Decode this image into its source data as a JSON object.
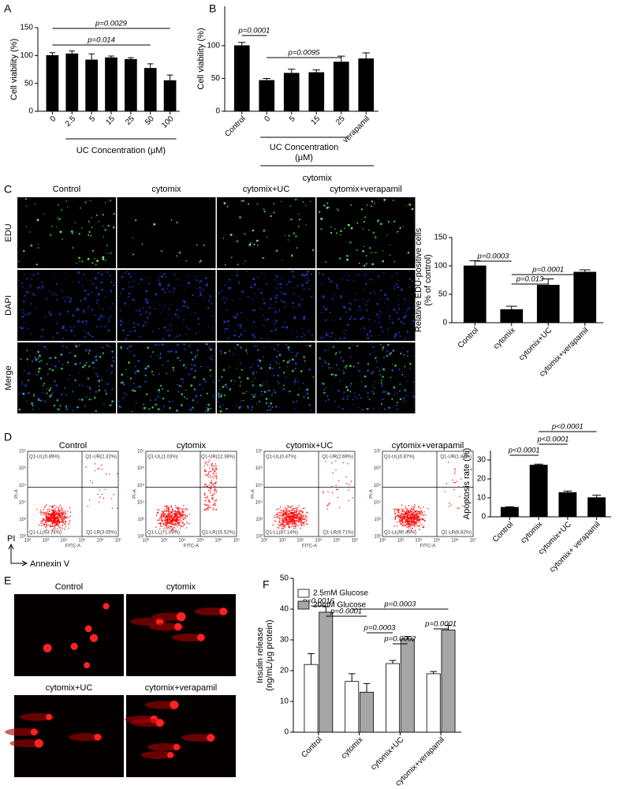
{
  "panel_labels": [
    "A",
    "B",
    "C",
    "D",
    "E",
    "F"
  ],
  "chart_data": [
    {
      "type": "bar",
      "ylabel": [
        "Cell viability (%)"
      ],
      "xlabel": "UC Concentration (μM)",
      "categories": [
        "0",
        "2.5",
        "5",
        "15",
        "25",
        "50",
        "100"
      ],
      "values": [
        100,
        103,
        92,
        96,
        93,
        77,
        55
      ],
      "errors": [
        5,
        5,
        11,
        3,
        3,
        8,
        10
      ],
      "color": "#000000",
      "ylim": [
        0,
        150
      ],
      "yticks": [
        0,
        50,
        100,
        150
      ],
      "annotations": [
        "p=0.0029",
        "p=0.014"
      ]
    },
    {
      "type": "bar",
      "ylabel": [
        "Cell viability (%)"
      ],
      "group_labels": [
        "UC Concentration",
        "(μM)",
        "cytomix"
      ],
      "categories": [
        "Control",
        "0",
        "5",
        "15",
        "25",
        "verapamil"
      ],
      "values": [
        100,
        47,
        58,
        59,
        75,
        80
      ],
      "errors": [
        5,
        3,
        6,
        4,
        9,
        9
      ],
      "color": "#000000",
      "ylim": [
        0,
        160
      ],
      "yticks": [
        0,
        50,
        100
      ],
      "annotations": [
        "p=0.0001",
        "p=0.0095"
      ]
    },
    {
      "type": "bar",
      "ylabel": [
        "Relative EDU-positive cells",
        "(% of control)"
      ],
      "categories": [
        "Control",
        "cytomix",
        "cytomix+UC",
        "cytomix+verapamil"
      ],
      "values": [
        100,
        23,
        66,
        89
      ],
      "errors": [
        9,
        6,
        11,
        4
      ],
      "color": "#000000",
      "ylim": [
        0,
        150
      ],
      "yticks": [
        0,
        50,
        100,
        150
      ],
      "annotations": [
        "p=0.0003",
        "p=0.013",
        "p=0.0001"
      ]
    },
    {
      "type": "bar",
      "ylabel": [
        "Apoptosis rate (%)"
      ],
      "categories": [
        "Control",
        "cytomix",
        "cytomix+UC",
        "cytomix+ verapamil"
      ],
      "values": [
        5,
        27.3,
        12.8,
        10.1
      ],
      "errors": [
        0.3,
        0.5,
        0.8,
        1.3
      ],
      "color": "#000000",
      "ylim": [
        0,
        35
      ],
      "yticks": [
        0,
        10,
        20,
        30
      ],
      "annotations": [
        "p<0.0001",
        "p<0.0001",
        "p<0.0001"
      ]
    },
    {
      "type": "grouped_bar",
      "ylabel": [
        "Insulin release",
        "(ng/mL/μg protein)"
      ],
      "categories": [
        "Control",
        "cytomix",
        "cytomix+UC",
        "cytomix+verapamil"
      ],
      "series": [
        {
          "name": "2.5mM Glucose",
          "color": "#ffffff",
          "values": [
            22,
            16.5,
            22.3,
            19
          ],
          "errors": [
            3.5,
            2.5,
            1,
            0.7
          ]
        },
        {
          "name": "20mM Glucose",
          "color": "#a6a6a6",
          "values": [
            39,
            13,
            30.3,
            33.2
          ],
          "errors": [
            1.8,
            2.8,
            0.8,
            1.5
          ]
        }
      ],
      "ylim": [
        0,
        50
      ],
      "yticks": [
        0,
        10,
        20,
        30,
        40,
        50
      ],
      "annotations": [
        "p=0.0016",
        "p=0.0001",
        "p=0.0003",
        "p=0.0003",
        "p=0.0002",
        "p=0.0001"
      ]
    }
  ],
  "images_c": {
    "columns": [
      "Control",
      "cytomix",
      "cytomix+UC",
      "cytomix+verapamil"
    ],
    "rows": [
      "EDU",
      "DAPI",
      "Merge"
    ]
  },
  "flow": {
    "plots": [
      {
        "title": "Control",
        "quadrants": [
          "Q1-UL(0.89%)",
          "Q1-UR(2.32%)",
          "Q1-LL(93.74%)",
          "Q1-LR(3.05%)"
        ]
      },
      {
        "title": "cytomix",
        "quadrants": [
          "Q1-UL(1.03%)",
          "Q1-UR(12.38%)",
          "Q1-LL(71.09%)",
          "Q1-LR(15.52%)"
        ]
      },
      {
        "title": "cytomix+UC",
        "quadrants": [
          "Q1-UL(0.47%)",
          "Q1-UR(2.69%)",
          "Q1-LL(87.14%)",
          "Q1-LR(9.71%)"
        ]
      },
      {
        "title": "cytomix+verapamil",
        "quadrants": [
          "Q1-UL(0.87%)",
          "Q1-UR(1.82%)",
          "Q1-LL(90.49%)",
          "Q1-LR(6.82%)"
        ]
      }
    ],
    "x_label": "FITC-A",
    "y_label": "PI-A",
    "ticks": [
      "10²",
      "10³",
      "10⁴",
      "10⁵",
      "10⁶",
      "10⁷"
    ],
    "axis_y": "PI",
    "axis_x": "Annexin V"
  },
  "images_e": {
    "labels": [
      "Control",
      "cytomix",
      "cytomix+UC",
      "cytomix+verapamil"
    ]
  }
}
